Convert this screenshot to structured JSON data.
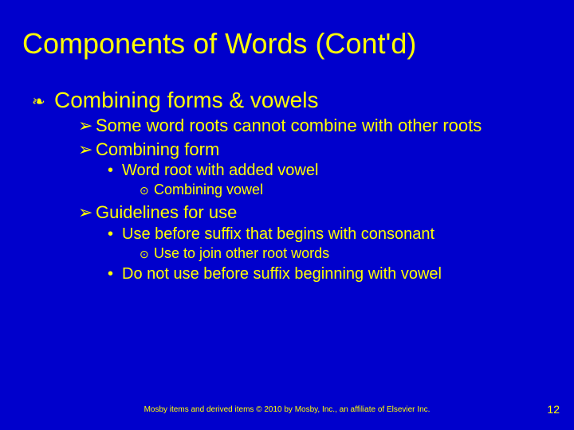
{
  "colors": {
    "background": "#0000cc",
    "text": "#ffff00"
  },
  "title": "Components of Words (Cont'd)",
  "bullets": {
    "main": "Combining forms & vowels",
    "sub1": "Some word roots cannot combine with other roots",
    "sub2": "Combining form",
    "sub2a": "Word root with added vowel",
    "sub2a1": "Combining vowel",
    "sub3": "Guidelines for use",
    "sub3a": "Use before suffix that begins with consonant",
    "sub3a1": "Use to join other root words",
    "sub3b": "Do not use before suffix beginning with vowel"
  },
  "glyphs": {
    "dec": "❧",
    "arrow": "➢",
    "dot": "•",
    "circ": "⊙"
  },
  "footer": "Mosby items and derived items © 2010 by Mosby, Inc., an affiliate of Elsevier Inc.",
  "pagenum": "12",
  "typography": {
    "title_fontsize": 36,
    "l1_fontsize": 28,
    "l2_fontsize": 22,
    "l3_fontsize": 20,
    "l4_fontsize": 18,
    "footer_fontsize": 10,
    "pagenum_fontsize": 14,
    "font_family": "Arial"
  }
}
